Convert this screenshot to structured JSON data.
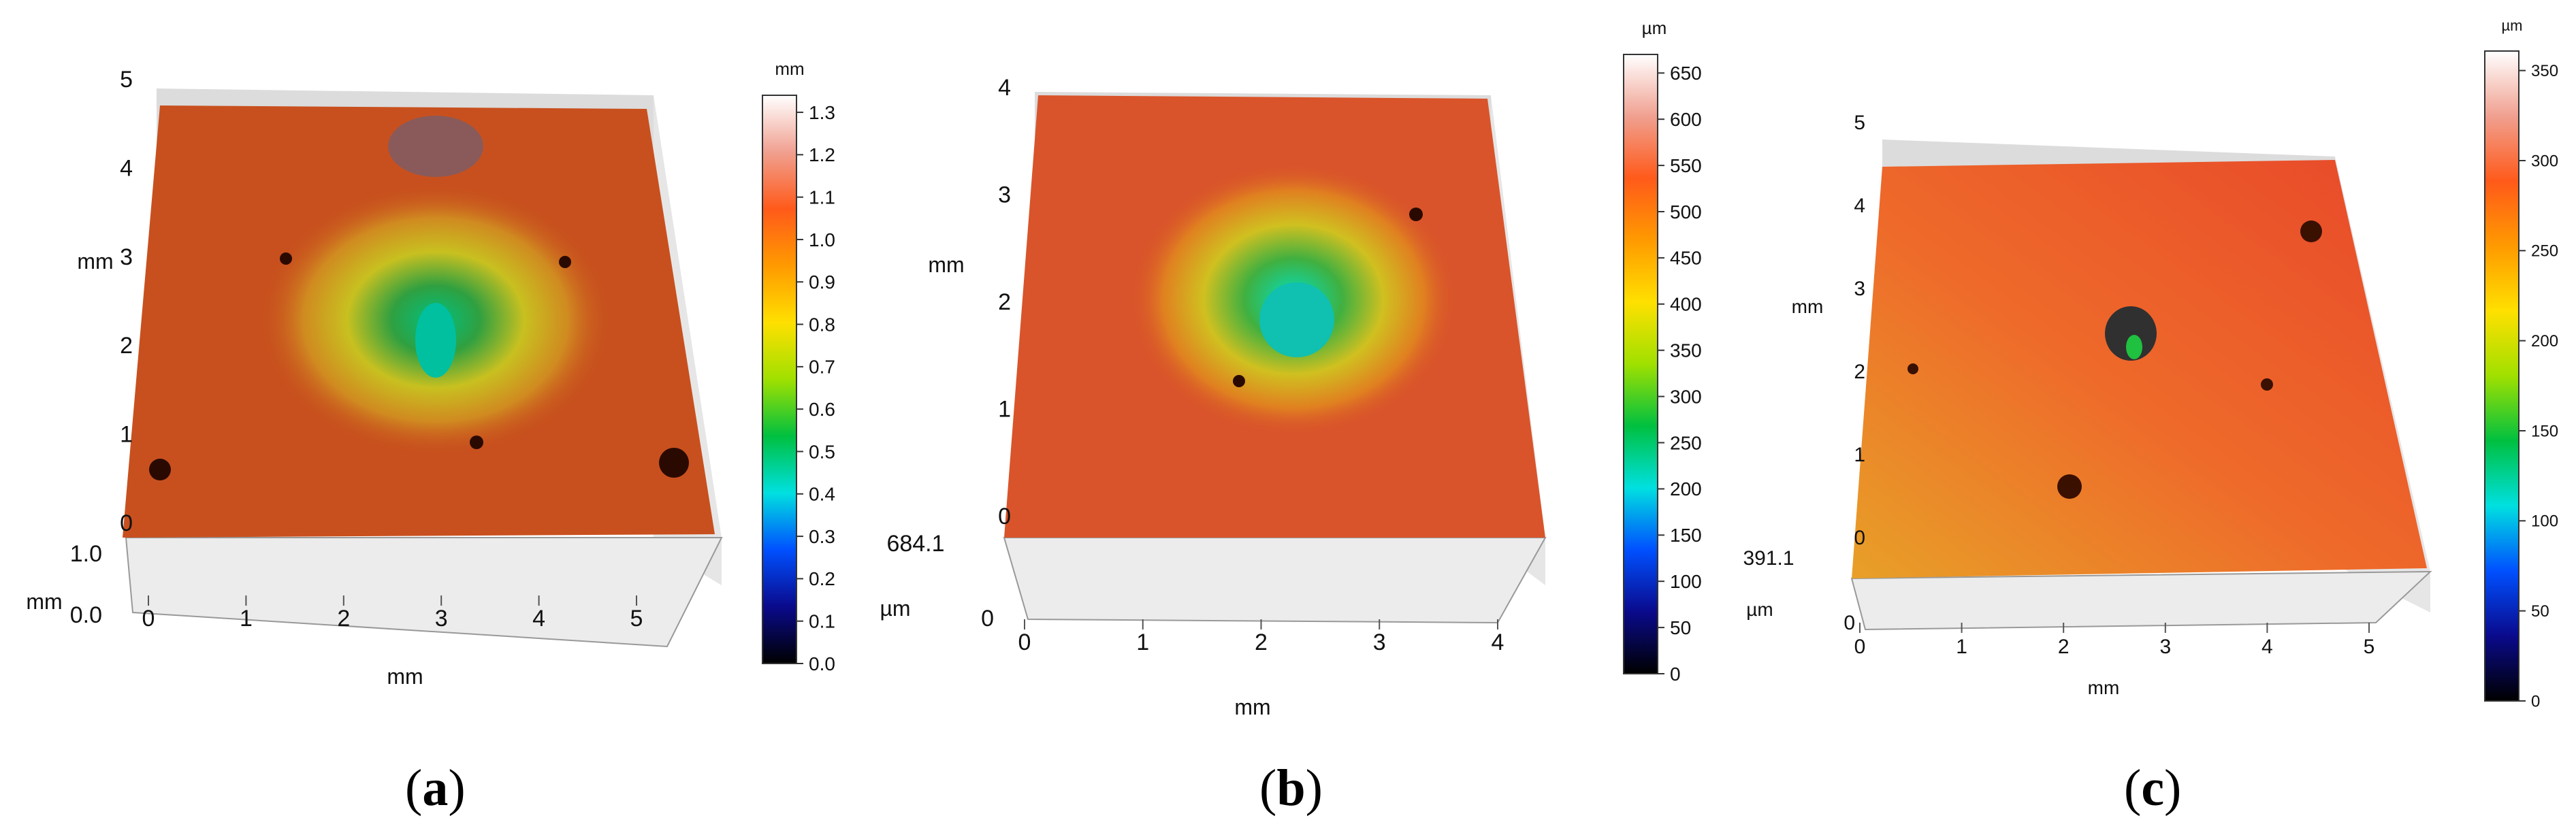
{
  "figures": [
    {
      "id": "a",
      "caption_letter": "a",
      "y_axis": {
        "unit": "mm",
        "ticks": [
          "0",
          "1",
          "2",
          "3",
          "4",
          "5"
        ]
      },
      "x_axis": {
        "unit": "mm",
        "ticks": [
          "0",
          "1",
          "2",
          "3",
          "4",
          "5"
        ]
      },
      "z_axis": {
        "unit": "mm",
        "ticks": [
          "0.0",
          "1.0"
        ],
        "top_value": ""
      },
      "colorbar": {
        "unit": "mm",
        "ticks": [
          "1.3",
          "1.2",
          "1.1",
          "1.0",
          "0.9",
          "0.8",
          "0.7",
          "0.6",
          "0.5",
          "0.4",
          "0.3",
          "0.2",
          "0.1",
          "0.0"
        ]
      },
      "surface_color": "#c8501e",
      "defect": "large shallow crater with central pit"
    },
    {
      "id": "b",
      "caption_letter": "b",
      "y_axis": {
        "unit": "mm",
        "ticks": [
          "0",
          "1",
          "2",
          "3",
          "4"
        ]
      },
      "x_axis": {
        "unit": "mm",
        "ticks": [
          "0",
          "1",
          "2",
          "3",
          "4"
        ]
      },
      "z_axis": {
        "unit": "µm",
        "ticks": [
          "0"
        ],
        "top_value": "684.1"
      },
      "colorbar": {
        "unit": "µm",
        "ticks": [
          "650",
          "600",
          "550",
          "500",
          "450",
          "400",
          "350",
          "300",
          "250",
          "200",
          "150",
          "100",
          "50",
          "0"
        ]
      },
      "surface_color": "#d9542a",
      "defect": "deep oval crater"
    },
    {
      "id": "c",
      "caption_letter": "c",
      "y_axis": {
        "unit": "mm",
        "ticks": [
          "0",
          "1",
          "2",
          "3",
          "4",
          "5"
        ]
      },
      "x_axis": {
        "unit": "mm",
        "ticks": [
          "0",
          "1",
          "2",
          "3",
          "4",
          "5"
        ]
      },
      "z_axis": {
        "unit": "µm",
        "ticks": [
          "0"
        ],
        "top_value": "391.1"
      },
      "colorbar": {
        "unit": "µm",
        "ticks": [
          "350",
          "300",
          "250",
          "200",
          "150",
          "100",
          "50",
          "0"
        ]
      },
      "surface_color": "#ee6a2a",
      "defect": "small central pit"
    }
  ],
  "colormap": [
    "#000000",
    "#0a0a8c",
    "#0050ff",
    "#00e0e0",
    "#00c040",
    "#a0e000",
    "#ffe000",
    "#ff9a00",
    "#ff5a1a",
    "#f0a090",
    "#ffffff"
  ]
}
